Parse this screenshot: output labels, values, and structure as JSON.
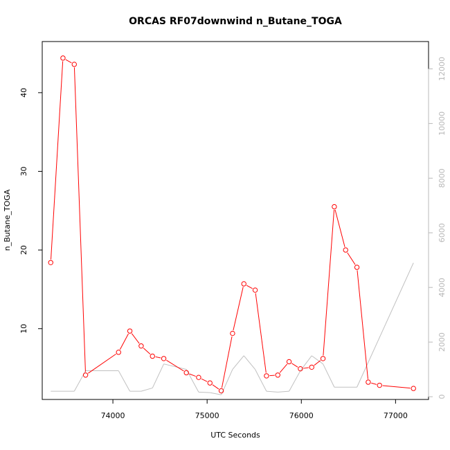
{
  "chart_data": {
    "type": "line",
    "title": "ORCAS RF07downwind n_Butane_TOGA",
    "xlabel": "UTC Seconds",
    "ylabel": "n_Butane_TOGA",
    "xlim": [
      73250,
      77350
    ],
    "ylim": [
      1.0,
      46.5
    ],
    "y2lim": [
      -100,
      13000
    ],
    "x_ticks": [
      74000,
      75000,
      76000,
      77000
    ],
    "y_ticks": [
      10,
      20,
      30,
      40
    ],
    "y2_ticks": [
      0,
      2000,
      4000,
      6000,
      8000,
      10000,
      12000
    ],
    "grid": false,
    "series": [
      {
        "color": "#ff0000",
        "marker": "open-circle",
        "points": [
          [
            73340,
            18.4
          ],
          [
            73470,
            44.4
          ],
          [
            73590,
            43.6
          ],
          [
            73710,
            4.1
          ],
          [
            74060,
            7.0
          ],
          [
            74180,
            9.7
          ],
          [
            74300,
            7.8
          ],
          [
            74420,
            6.5
          ],
          [
            74540,
            6.2
          ],
          [
            74780,
            4.4
          ],
          [
            74910,
            3.8
          ],
          [
            75030,
            3.1
          ],
          [
            75150,
            2.1
          ],
          [
            75270,
            9.4
          ],
          [
            75390,
            15.7
          ],
          [
            75510,
            14.9
          ],
          [
            75630,
            4.0
          ],
          [
            75750,
            4.1
          ],
          [
            75870,
            5.8
          ],
          [
            75990,
            4.9
          ],
          [
            76110,
            5.1
          ],
          [
            76230,
            6.2
          ],
          [
            76350,
            25.5
          ],
          [
            76470,
            20.0
          ],
          [
            76590,
            17.8
          ],
          [
            76710,
            3.2
          ],
          [
            76830,
            2.8
          ],
          [
            77190,
            2.4
          ]
        ]
      },
      {
        "color": "#c0c0c0",
        "axis": "right",
        "points": [
          [
            73340,
            200
          ],
          [
            73590,
            200
          ],
          [
            73710,
            950
          ],
          [
            74060,
            950
          ],
          [
            74180,
            200
          ],
          [
            74300,
            200
          ],
          [
            74420,
            320
          ],
          [
            74540,
            1200
          ],
          [
            74780,
            1000
          ],
          [
            74910,
            170
          ],
          [
            75030,
            150
          ],
          [
            75150,
            70
          ],
          [
            75270,
            1000
          ],
          [
            75390,
            1500
          ],
          [
            75510,
            1000
          ],
          [
            75630,
            200
          ],
          [
            75750,
            170
          ],
          [
            75870,
            200
          ],
          [
            75990,
            950
          ],
          [
            76110,
            1500
          ],
          [
            76230,
            1200
          ],
          [
            76350,
            350
          ],
          [
            76590,
            350
          ],
          [
            77190,
            4900
          ]
        ]
      }
    ]
  }
}
